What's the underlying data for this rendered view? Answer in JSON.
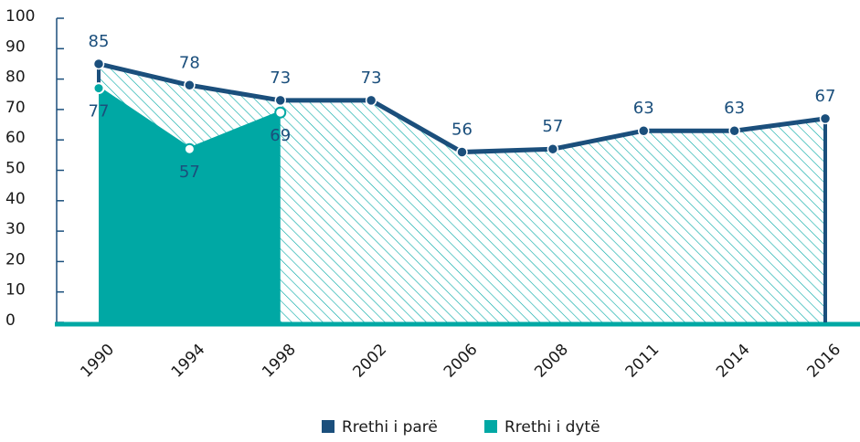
{
  "chart_data": {
    "type": "line",
    "categories": [
      "1990",
      "1994",
      "1998",
      "2002",
      "2006",
      "2008",
      "2011",
      "2014",
      "2016"
    ],
    "series": [
      {
        "name": "Rrethi i parë",
        "color": "#1b4f7c",
        "values": [
          85,
          78,
          73,
          73,
          56,
          57,
          63,
          63,
          67
        ]
      },
      {
        "name": "Rrethi i dytë",
        "color": "#00a8a4",
        "values": [
          77,
          57,
          69,
          null,
          null,
          null,
          null,
          null,
          null
        ]
      }
    ],
    "ylim": [
      0,
      100
    ],
    "yticks": [
      0,
      10,
      20,
      30,
      40,
      50,
      60,
      70,
      80,
      90,
      100
    ]
  }
}
